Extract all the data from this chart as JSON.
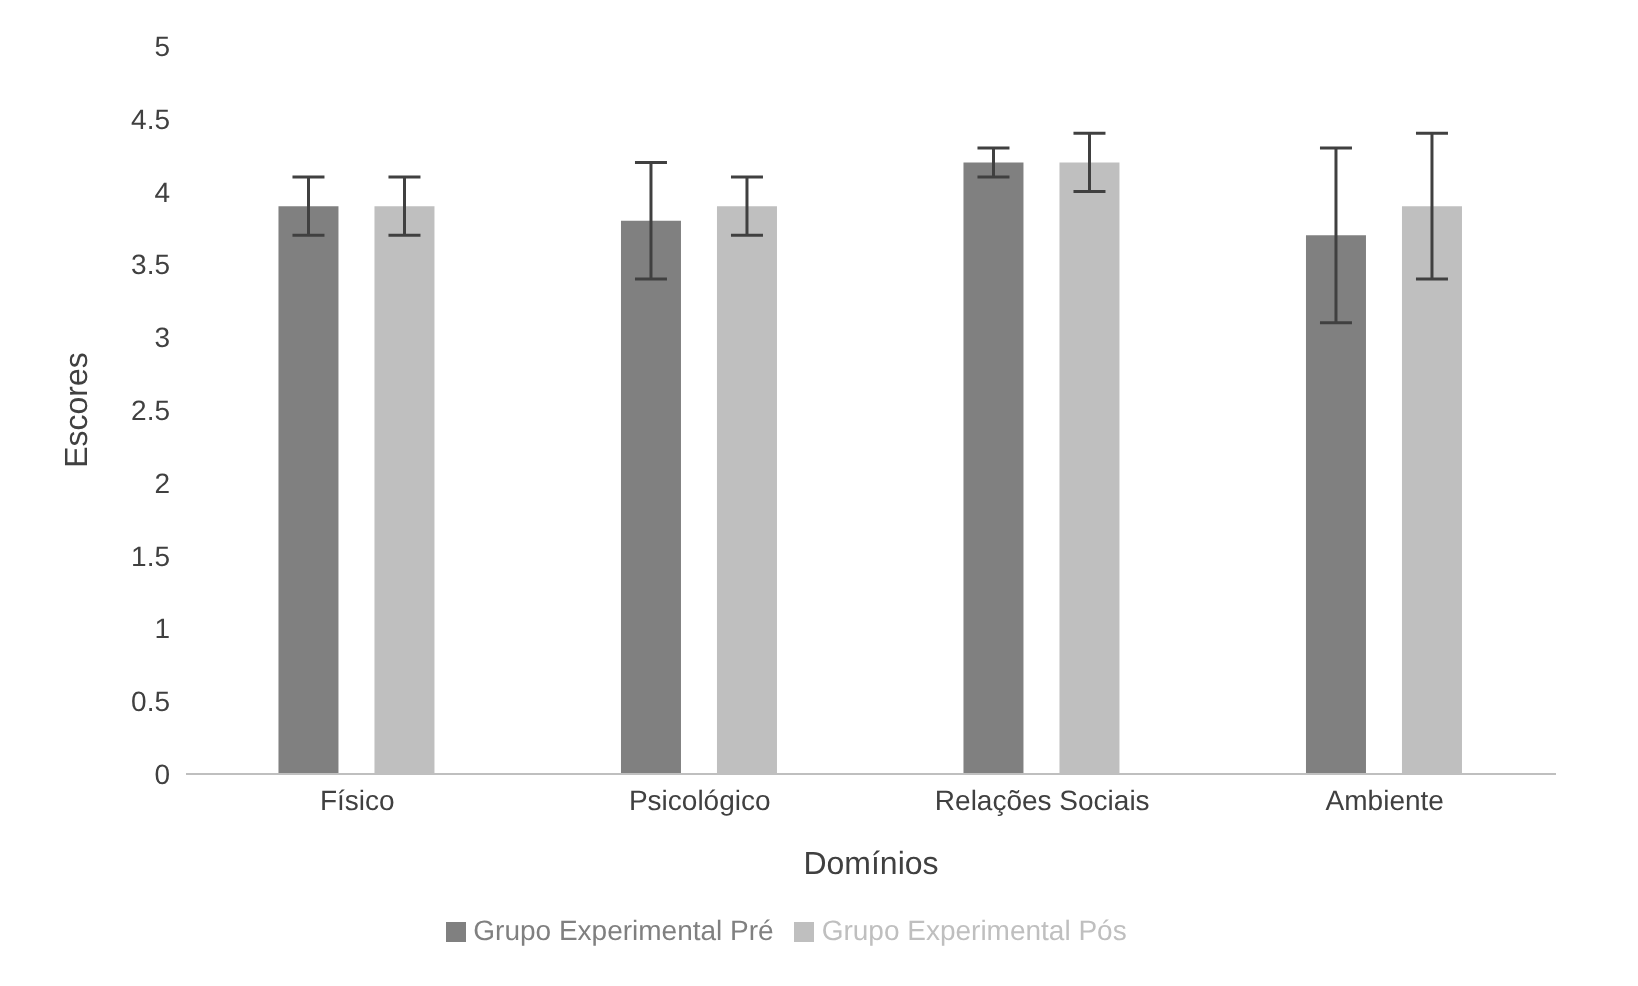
{
  "chart_data": {
    "type": "bar",
    "xlabel": "Domínios",
    "ylabel": "Escores",
    "categories": [
      "Físico",
      "Psicológico",
      "Relações Sociais",
      "Ambiente"
    ],
    "series": [
      {
        "name": "Grupo Experimental Pré",
        "color": "#808080",
        "values": [
          3.9,
          3.8,
          4.2,
          3.7
        ],
        "errors": [
          0.2,
          0.4,
          0.1,
          0.6
        ]
      },
      {
        "name": "Grupo Experimental Pós",
        "color": "#bfbfbf",
        "values": [
          3.9,
          3.9,
          4.2,
          3.9
        ],
        "errors": [
          0.2,
          0.2,
          0.2,
          0.5
        ]
      }
    ],
    "ylim": [
      0,
      5
    ],
    "yticks": [
      0,
      0.5,
      1,
      1.5,
      2,
      2.5,
      3,
      3.5,
      4,
      4.5,
      5
    ],
    "grid": false,
    "legend": "bottom"
  }
}
